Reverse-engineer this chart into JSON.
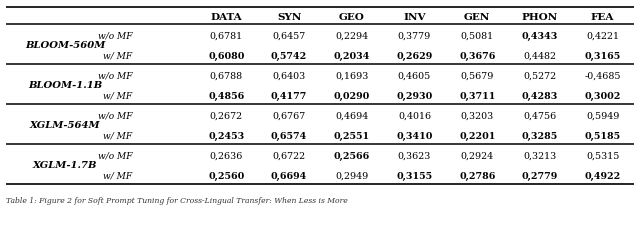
{
  "columns": [
    "DATA",
    "SYN",
    "GEO",
    "INV",
    "GEN",
    "PHON",
    "FEA"
  ],
  "row_groups": [
    {
      "model": "BLOOM-560M",
      "rows": [
        {
          "condition": "w/o MF",
          "values": [
            "0,6781",
            "0,6457",
            "0,2294",
            "0,3779",
            "0,5081",
            "0,4343",
            "0,4221"
          ],
          "bold": [
            false,
            false,
            false,
            false,
            false,
            true,
            false
          ]
        },
        {
          "condition": "w/ MF",
          "values": [
            "0,6080",
            "0,5742",
            "0,2034",
            "0,2629",
            "0,3676",
            "0,4482",
            "0,3165"
          ],
          "bold": [
            true,
            true,
            true,
            true,
            true,
            false,
            true
          ]
        }
      ]
    },
    {
      "model": "BLOOM-1.1B",
      "rows": [
        {
          "condition": "w/o MF",
          "values": [
            "0,6788",
            "0,6403",
            "0,1693",
            "0,4605",
            "0,5679",
            "0,5272",
            "-0,4685"
          ],
          "bold": [
            false,
            false,
            false,
            false,
            false,
            false,
            false
          ]
        },
        {
          "condition": "w/ MF",
          "values": [
            "0,4856",
            "0,4177",
            "0,0290",
            "0,2930",
            "0,3711",
            "0,4283",
            "0,3002"
          ],
          "bold": [
            true,
            true,
            true,
            true,
            true,
            true,
            true
          ]
        }
      ]
    },
    {
      "model": "XGLM-564M",
      "rows": [
        {
          "condition": "w/o MF",
          "values": [
            "0,2672",
            "0,6767",
            "0,4694",
            "0,4016",
            "0,3203",
            "0,4756",
            "0,5949"
          ],
          "bold": [
            false,
            false,
            false,
            false,
            false,
            false,
            false
          ]
        },
        {
          "condition": "w/ MF",
          "values": [
            "0,2453",
            "0,6574",
            "0,2551",
            "0,3410",
            "0,2201",
            "0,3285",
            "0,5185"
          ],
          "bold": [
            true,
            true,
            true,
            true,
            true,
            true,
            true
          ]
        }
      ]
    },
    {
      "model": "XGLM-1.7B",
      "rows": [
        {
          "condition": "w/o MF",
          "values": [
            "0,2636",
            "0,6722",
            "0,2566",
            "0,3623",
            "0,2924",
            "0,3213",
            "0,5315"
          ],
          "bold": [
            false,
            false,
            true,
            false,
            false,
            false,
            false
          ]
        },
        {
          "condition": "w/ MF",
          "values": [
            "0,2560",
            "0,6694",
            "0,2949",
            "0,3155",
            "0,2786",
            "0,2779",
            "0,4922"
          ],
          "bold": [
            true,
            true,
            false,
            true,
            true,
            true,
            true
          ]
        }
      ]
    }
  ],
  "caption": "Table 1: Figure 2 for Soft Prompt Tuning for Cross-Lingual Transfer: When Less is More",
  "bg_color": "#ffffff",
  "text_color": "#000000"
}
